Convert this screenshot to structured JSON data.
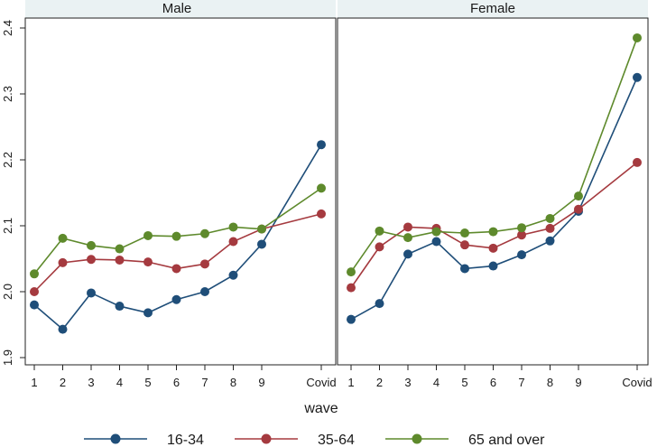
{
  "chart_data": {
    "type": "line",
    "xlabel": "wave",
    "categories": [
      "1",
      "2",
      "3",
      "4",
      "5",
      "6",
      "7",
      "8",
      "9",
      "Covid"
    ],
    "ylim": [
      1.9,
      2.4
    ],
    "yticks": [
      "1.9",
      "2.0",
      "2.1",
      "2.2",
      "2.3",
      "2.4"
    ],
    "grid": false,
    "legend_position": "bottom",
    "colors": {
      "16-34": "#1f4e79",
      "35-64": "#a53a3f",
      "65 and over": "#5e8a2c"
    },
    "panels": [
      {
        "title": "Male",
        "series": [
          {
            "name": "16-34",
            "values": [
              1.98,
              1.943,
              1.998,
              1.978,
              1.968,
              1.988,
              2.0,
              2.025,
              2.072,
              2.223
            ]
          },
          {
            "name": "35-64",
            "values": [
              2.0,
              2.044,
              2.049,
              2.048,
              2.045,
              2.035,
              2.042,
              2.076,
              2.095,
              2.118
            ]
          },
          {
            "name": "65 and over",
            "values": [
              2.027,
              2.081,
              2.07,
              2.065,
              2.085,
              2.084,
              2.088,
              2.098,
              2.095,
              2.157
            ]
          }
        ]
      },
      {
        "title": "Female",
        "series": [
          {
            "name": "16-34",
            "values": [
              1.958,
              1.982,
              2.057,
              2.076,
              2.035,
              2.039,
              2.056,
              2.077,
              2.122,
              2.325
            ]
          },
          {
            "name": "35-64",
            "values": [
              2.006,
              2.068,
              2.098,
              2.096,
              2.071,
              2.066,
              2.086,
              2.096,
              2.125,
              2.196
            ]
          },
          {
            "name": "65 and over",
            "values": [
              2.03,
              2.092,
              2.082,
              2.091,
              2.089,
              2.091,
              2.097,
              2.111,
              2.145,
              2.385
            ]
          }
        ]
      }
    ]
  }
}
